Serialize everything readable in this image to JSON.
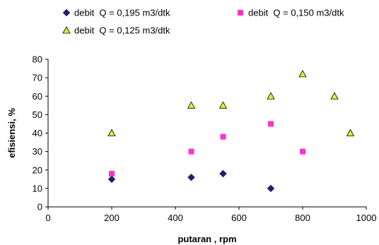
{
  "chart_data": {
    "type": "scatter",
    "title": "",
    "xlabel": "putaran , rpm",
    "ylabel": "efisiensi, %",
    "xlim": [
      0,
      1000
    ],
    "ylim": [
      0,
      80
    ],
    "x_ticks": [
      0,
      200,
      400,
      600,
      800,
      1000
    ],
    "y_ticks": [
      0,
      10,
      20,
      30,
      40,
      50,
      60,
      70,
      80
    ],
    "grid": false,
    "legend_position": "top",
    "series": [
      {
        "name": "debit  Q = 0,195 m3/dtk",
        "marker": "diamond",
        "color": "#1f1f6e",
        "points": [
          [
            200,
            15
          ],
          [
            450,
            16
          ],
          [
            550,
            18
          ],
          [
            700,
            10
          ]
        ]
      },
      {
        "name": "debit  Q = 0,150 m3/dtk",
        "marker": "square",
        "color": "#ff33cc",
        "points": [
          [
            200,
            18
          ],
          [
            450,
            30
          ],
          [
            550,
            38
          ],
          [
            700,
            45
          ],
          [
            800,
            30
          ]
        ]
      },
      {
        "name": "debit  Q = 0,125 m3/dtk",
        "marker": "triangle",
        "color": "#ccff33",
        "points": [
          [
            200,
            40
          ],
          [
            450,
            55
          ],
          [
            550,
            55
          ],
          [
            700,
            60
          ],
          [
            800,
            72
          ],
          [
            900,
            60
          ],
          [
            950,
            40
          ]
        ]
      }
    ]
  }
}
